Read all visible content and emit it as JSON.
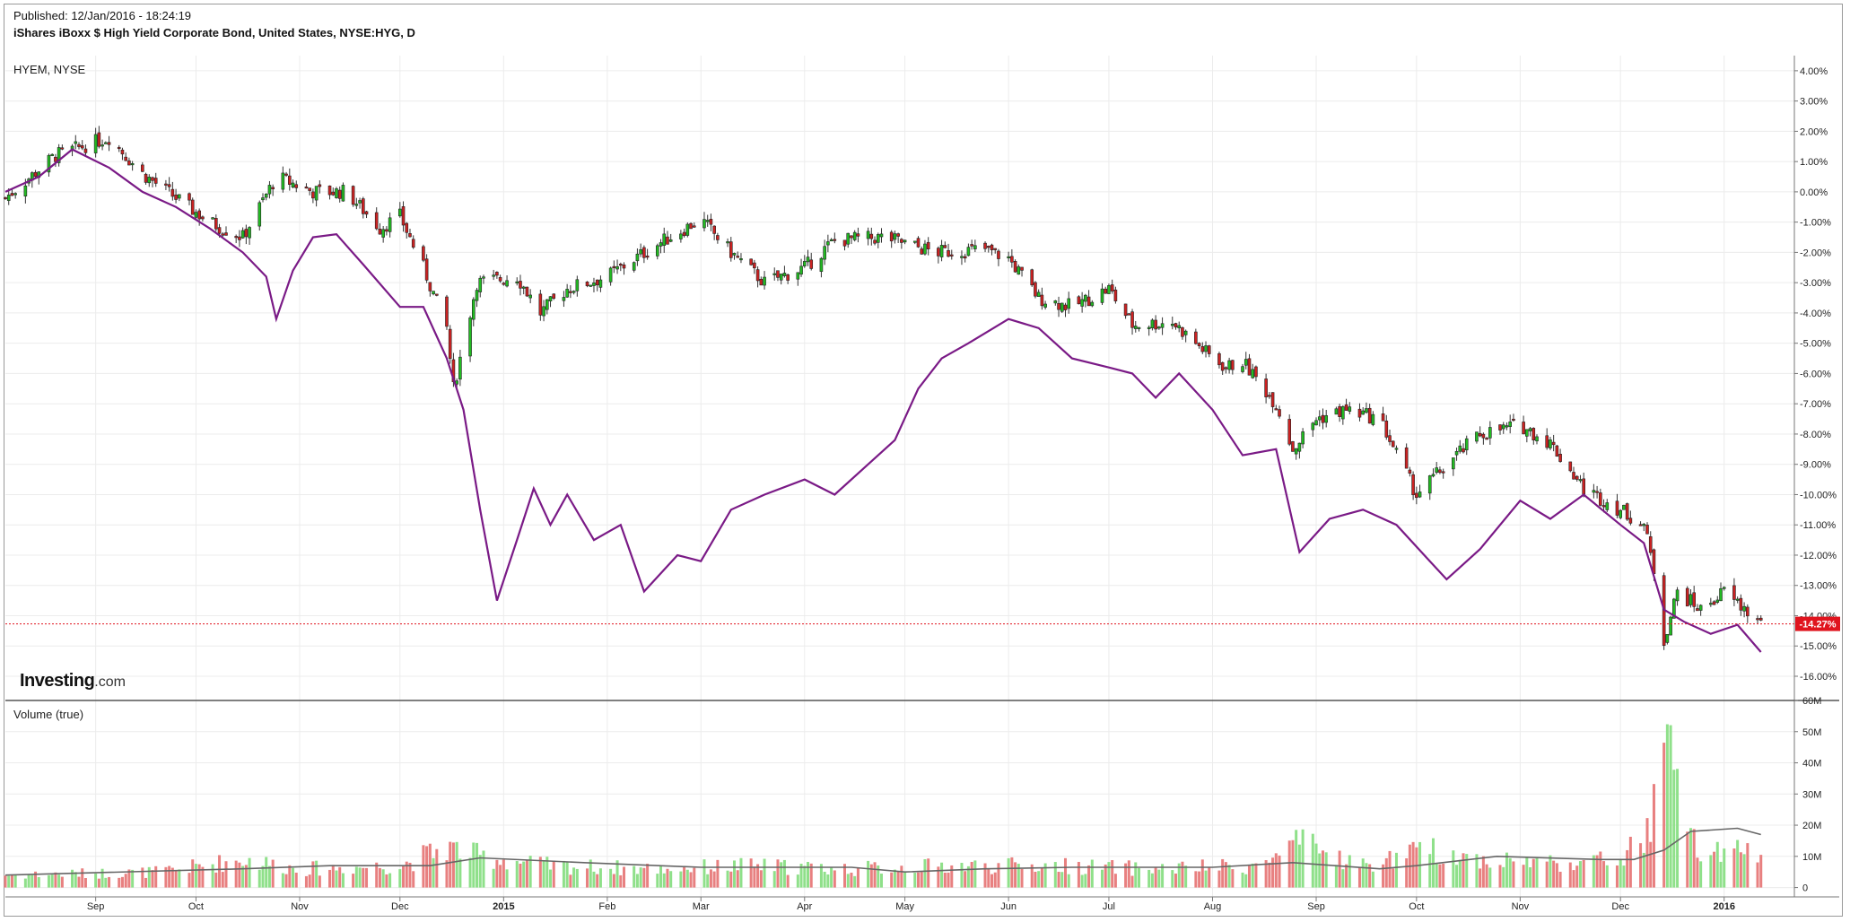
{
  "header": {
    "published": "Published: 12/Jan/2016 - 18:24:19",
    "title": "iShares iBoxx $ High Yield Corporate Bond, United States, NYSE:HYG, D"
  },
  "main_pane": {
    "label": "HYEM, NYSE"
  },
  "volume_pane": {
    "label": "Volume (true)"
  },
  "logo": {
    "brand": "Investing",
    "suffix": ".com"
  },
  "colors": {
    "up": "#22bb22",
    "down": "#cc2222",
    "compare_line": "#7a1a86",
    "volume_up": "#8fe08a",
    "volume_down": "#e88080",
    "volume_ma": "#666666",
    "last_price_marker": "#e0141e",
    "grid": "#ececec"
  },
  "chart_data": [
    {
      "type": "candlestick",
      "ticker": "HYG",
      "overlay": "HYEM, NYSE",
      "y_unit": "%",
      "ylim": [
        -16.8,
        4.5
      ],
      "y_ticks": [
        "4.00%",
        "3.00%",
        "2.00%",
        "1.00%",
        "0.00%",
        "-1.00%",
        "-2.00%",
        "-3.00%",
        "-4.00%",
        "-5.00%",
        "-6.00%",
        "-7.00%",
        "-8.00%",
        "-9.00%",
        "-10.00%",
        "-11.00%",
        "-12.00%",
        "-13.00%",
        "-14.00%",
        "-15.00%",
        "-16.00%"
      ],
      "x_ticks": [
        "Sep",
        "Oct",
        "Nov",
        "Dec",
        "2015",
        "Feb",
        "Mar",
        "Apr",
        "May",
        "Jun",
        "Jul",
        "Aug",
        "Sep",
        "Oct",
        "Nov",
        "Dec",
        "2016"
      ],
      "x_tick_dates": [
        "2014-09-01",
        "2014-10-01",
        "2014-11-01",
        "2014-12-01",
        "2015-01-01",
        "2015-02-01",
        "2015-03-01",
        "2015-04-01",
        "2015-05-01",
        "2015-06-01",
        "2015-07-01",
        "2015-08-01",
        "2015-09-01",
        "2015-10-01",
        "2015-11-01",
        "2015-12-01",
        "2016-01-01"
      ],
      "x_range": [
        "2014-08-05",
        "2016-01-22"
      ],
      "last_value_label": "-14.27%",
      "last_value": -14.27,
      "hyg_trend": [
        [
          "2014-08-05",
          -0.2
        ],
        [
          "2014-08-20",
          1.2
        ],
        [
          "2014-09-05",
          1.8
        ],
        [
          "2014-09-15",
          0.6
        ],
        [
          "2014-09-25",
          -0.2
        ],
        [
          "2014-10-05",
          -1.0
        ],
        [
          "2014-10-15",
          -1.5
        ],
        [
          "2014-10-25",
          0.5
        ],
        [
          "2014-11-05",
          0.0
        ],
        [
          "2014-11-15",
          0.0
        ],
        [
          "2014-11-25",
          -1.2
        ],
        [
          "2014-12-01",
          -0.8
        ],
        [
          "2014-12-08",
          -2.5
        ],
        [
          "2014-12-15",
          -4.5
        ],
        [
          "2014-12-17",
          -6.5
        ],
        [
          "2014-12-24",
          -3.0
        ],
        [
          "2015-01-05",
          -2.8
        ],
        [
          "2015-01-12",
          -4.0
        ],
        [
          "2015-01-20",
          -3.2
        ],
        [
          "2015-02-01",
          -2.8
        ],
        [
          "2015-02-15",
          -1.8
        ],
        [
          "2015-03-01",
          -0.9
        ],
        [
          "2015-03-10",
          -2.0
        ],
        [
          "2015-03-20",
          -3.0
        ],
        [
          "2015-04-01",
          -2.5
        ],
        [
          "2015-04-10",
          -1.6
        ],
        [
          "2015-04-25",
          -1.5
        ],
        [
          "2015-05-10",
          -2.0
        ],
        [
          "2015-05-25",
          -1.9
        ],
        [
          "2015-06-01",
          -2.2
        ],
        [
          "2015-06-10",
          -3.5
        ],
        [
          "2015-06-20",
          -3.8
        ],
        [
          "2015-07-01",
          -3.2
        ],
        [
          "2015-07-08",
          -4.4
        ],
        [
          "2015-07-20",
          -4.3
        ],
        [
          "2015-08-01",
          -5.5
        ],
        [
          "2015-08-05",
          -5.8
        ],
        [
          "2015-08-10",
          -5.6
        ],
        [
          "2015-08-20",
          -7.0
        ],
        [
          "2015-08-25",
          -8.5
        ],
        [
          "2015-09-01",
          -7.5
        ],
        [
          "2015-09-10",
          -7.2
        ],
        [
          "2015-09-20",
          -7.5
        ],
        [
          "2015-10-01",
          -10.0
        ],
        [
          "2015-10-10",
          -9.0
        ],
        [
          "2015-10-20",
          -8.0
        ],
        [
          "2015-11-01",
          -7.7
        ],
        [
          "2015-11-10",
          -8.3
        ],
        [
          "2015-11-20",
          -9.8
        ],
        [
          "2015-12-01",
          -10.5
        ],
        [
          "2015-12-08",
          -11.0
        ],
        [
          "2015-12-11",
          -12.5
        ],
        [
          "2015-12-14",
          -14.8
        ],
        [
          "2015-12-18",
          -13.2
        ],
        [
          "2015-12-25",
          -13.8
        ],
        [
          "2016-01-01",
          -13.2
        ],
        [
          "2016-01-12",
          -14.27
        ]
      ],
      "overlay_line": [
        [
          "2014-08-05",
          0.0
        ],
        [
          "2014-08-15",
          0.5
        ],
        [
          "2014-08-25",
          1.4
        ],
        [
          "2014-09-05",
          0.8
        ],
        [
          "2014-09-15",
          0.0
        ],
        [
          "2014-09-25",
          -0.5
        ],
        [
          "2014-10-05",
          -1.2
        ],
        [
          "2014-10-15",
          -2.0
        ],
        [
          "2014-10-22",
          -2.8
        ],
        [
          "2014-10-25",
          -4.2
        ],
        [
          "2014-10-30",
          -2.6
        ],
        [
          "2014-11-05",
          -1.5
        ],
        [
          "2014-11-12",
          -1.4
        ],
        [
          "2014-11-20",
          -2.4
        ],
        [
          "2014-12-01",
          -3.8
        ],
        [
          "2014-12-08",
          -3.8
        ],
        [
          "2014-12-15",
          -5.5
        ],
        [
          "2014-12-20",
          -7.2
        ],
        [
          "2014-12-25",
          -10.5
        ],
        [
          "2014-12-30",
          -13.5
        ],
        [
          "2015-01-05",
          -11.5
        ],
        [
          "2015-01-10",
          -9.8
        ],
        [
          "2015-01-15",
          -11.0
        ],
        [
          "2015-01-20",
          -10.0
        ],
        [
          "2015-01-28",
          -11.5
        ],
        [
          "2015-02-05",
          -11.0
        ],
        [
          "2015-02-12",
          -13.2
        ],
        [
          "2015-02-22",
          -12.0
        ],
        [
          "2015-03-01",
          -12.2
        ],
        [
          "2015-03-10",
          -10.5
        ],
        [
          "2015-03-20",
          -10.0
        ],
        [
          "2015-04-01",
          -9.5
        ],
        [
          "2015-04-10",
          -10.0
        ],
        [
          "2015-04-20",
          -9.0
        ],
        [
          "2015-04-28",
          -8.2
        ],
        [
          "2015-05-05",
          -6.5
        ],
        [
          "2015-05-12",
          -5.5
        ],
        [
          "2015-05-20",
          -5.0
        ],
        [
          "2015-06-01",
          -4.2
        ],
        [
          "2015-06-10",
          -4.5
        ],
        [
          "2015-06-20",
          -5.5
        ],
        [
          "2015-07-01",
          -5.8
        ],
        [
          "2015-07-08",
          -6.0
        ],
        [
          "2015-07-15",
          -6.8
        ],
        [
          "2015-07-22",
          -6.0
        ],
        [
          "2015-08-01",
          -7.2
        ],
        [
          "2015-08-10",
          -8.7
        ],
        [
          "2015-08-20",
          -8.5
        ],
        [
          "2015-08-27",
          -11.9
        ],
        [
          "2015-09-05",
          -10.8
        ],
        [
          "2015-09-15",
          -10.5
        ],
        [
          "2015-09-25",
          -11.0
        ],
        [
          "2015-10-05",
          -12.2
        ],
        [
          "2015-10-10",
          -12.8
        ],
        [
          "2015-10-20",
          -11.8
        ],
        [
          "2015-11-01",
          -10.2
        ],
        [
          "2015-11-10",
          -10.8
        ],
        [
          "2015-11-20",
          -10.0
        ],
        [
          "2015-12-01",
          -11.0
        ],
        [
          "2015-12-08",
          -11.6
        ],
        [
          "2015-12-14",
          -13.8
        ],
        [
          "2015-12-20",
          -14.2
        ],
        [
          "2015-12-28",
          -14.6
        ],
        [
          "2016-01-05",
          -14.3
        ],
        [
          "2016-01-12",
          -15.2
        ]
      ]
    },
    {
      "type": "bar",
      "series_label": "Volume (true)",
      "y_unit": "shares",
      "ylim": [
        -3,
        60
      ],
      "y_ticks": [
        "60M",
        "50M",
        "40M",
        "30M",
        "20M",
        "10M",
        "0"
      ],
      "volume_profile": [
        [
          "2014-08-05",
          4
        ],
        [
          "2014-09-20",
          5
        ],
        [
          "2014-10-15",
          9
        ],
        [
          "2014-11-01",
          6
        ],
        [
          "2014-12-01",
          7
        ],
        [
          "2014-12-15",
          13
        ],
        [
          "2014-12-25",
          10
        ],
        [
          "2015-01-15",
          7
        ],
        [
          "2015-02-15",
          6
        ],
        [
          "2015-03-15",
          7
        ],
        [
          "2015-04-15",
          6
        ],
        [
          "2015-05-15",
          7
        ],
        [
          "2015-06-15",
          7
        ],
        [
          "2015-07-15",
          6
        ],
        [
          "2015-08-15",
          7
        ],
        [
          "2015-08-27",
          14
        ],
        [
          "2015-09-15",
          7
        ],
        [
          "2015-10-05",
          12
        ],
        [
          "2015-10-20",
          9
        ],
        [
          "2015-11-15",
          8
        ],
        [
          "2015-12-01",
          9
        ],
        [
          "2015-12-10",
          18
        ],
        [
          "2015-12-14",
          50
        ],
        [
          "2015-12-18",
          30
        ],
        [
          "2015-12-25",
          10
        ],
        [
          "2016-01-12",
          12
        ]
      ],
      "moving_average": [
        [
          "2014-08-05",
          4
        ],
        [
          "2014-10-15",
          6
        ],
        [
          "2014-11-10",
          7
        ],
        [
          "2014-12-10",
          7
        ],
        [
          "2014-12-25",
          9.5
        ],
        [
          "2015-01-25",
          8
        ],
        [
          "2015-03-01",
          6.5
        ],
        [
          "2015-04-15",
          6.5
        ],
        [
          "2015-05-01",
          5
        ],
        [
          "2015-05-25",
          6
        ],
        [
          "2015-06-20",
          6.5
        ],
        [
          "2015-08-01",
          6.5
        ],
        [
          "2015-08-25",
          8
        ],
        [
          "2015-09-20",
          6
        ],
        [
          "2015-10-01",
          7
        ],
        [
          "2015-10-25",
          10
        ],
        [
          "2015-11-25",
          9
        ],
        [
          "2015-12-05",
          9
        ],
        [
          "2015-12-14",
          12
        ],
        [
          "2015-12-22",
          18
        ],
        [
          "2016-01-05",
          19
        ],
        [
          "2016-01-12",
          17
        ]
      ]
    }
  ]
}
